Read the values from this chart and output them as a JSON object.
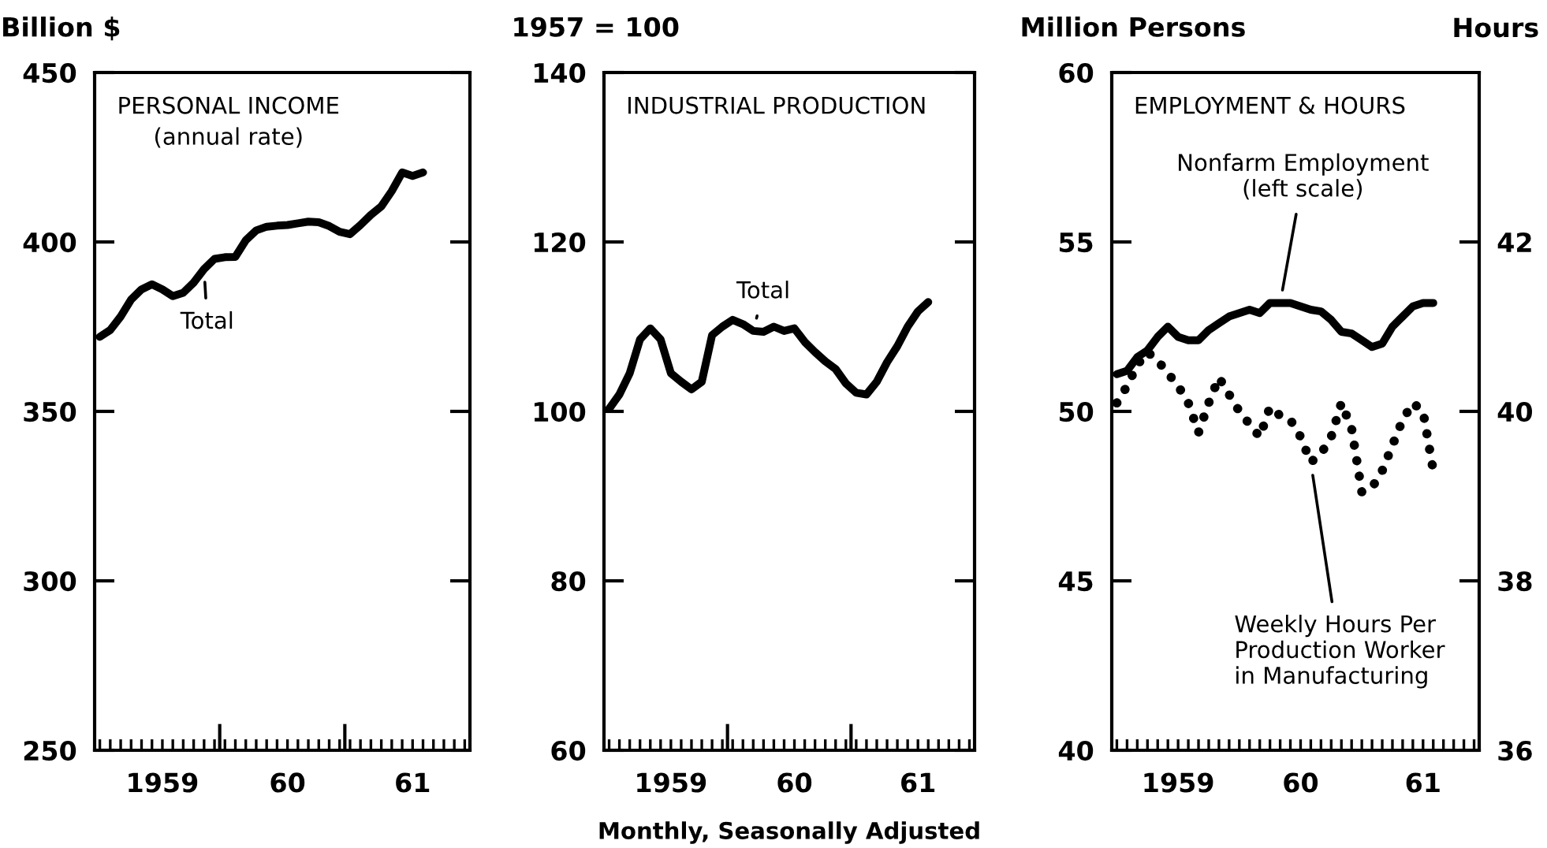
{
  "chart_data": [
    {
      "type": "line",
      "title": "PERSONAL INCOME\n(annual rate)",
      "ylabel": "Billion $",
      "ylim": [
        250,
        450
      ],
      "yticks": [
        250,
        300,
        350,
        400,
        450
      ],
      "categories": [
        null,
        null,
        null,
        null,
        null,
        null,
        "1959",
        null,
        null,
        null,
        null,
        null,
        null,
        null,
        null,
        null,
        null,
        null,
        "60",
        null,
        null,
        null,
        null,
        null,
        null,
        null,
        null,
        null,
        null,
        null,
        "61",
        null,
        null,
        null,
        null,
        null
      ],
      "grid": false,
      "line_style": "solid",
      "series": [
        {
          "name": "Total",
          "color": "#000000",
          "values": [
            372,
            374,
            378,
            383,
            386,
            387.5,
            386,
            384,
            385,
            388,
            392,
            395,
            395.5,
            395.6,
            400.5,
            403.4,
            404.5,
            404.8,
            405,
            405.5,
            406,
            405.8,
            404.7,
            403,
            402.3,
            405,
            408,
            410.5,
            415,
            420.5,
            419.5,
            420.5,
            null,
            null,
            null,
            null
          ]
        }
      ]
    },
    {
      "type": "line",
      "title": "INDUSTRIAL PRODUCTION",
      "ylabel": "1957 = 100",
      "ylim": [
        60,
        140
      ],
      "yticks": [
        60,
        80,
        100,
        120,
        140
      ],
      "categories": [
        null,
        null,
        null,
        null,
        null,
        null,
        "1959",
        null,
        null,
        null,
        null,
        null,
        null,
        null,
        null,
        null,
        null,
        null,
        "60",
        null,
        null,
        null,
        null,
        null,
        null,
        null,
        null,
        null,
        null,
        null,
        "61",
        null,
        null,
        null,
        null,
        null
      ],
      "grid": false,
      "line_style": "solid",
      "annotations": [
        "Monthly, Seasonally Adjusted"
      ],
      "series": [
        {
          "name": "Total",
          "color": "#000000",
          "values": [
            100.3,
            102,
            104.5,
            108.5,
            109.8,
            108.5,
            104.5,
            103.5,
            102.6,
            103.5,
            109,
            110,
            110.8,
            110.3,
            109.5,
            109.4,
            110,
            109.5,
            109.8,
            108.2,
            107,
            105.9,
            105,
            103.3,
            102.2,
            102,
            103.5,
            105.8,
            107.7,
            110,
            111.8,
            112.9,
            null,
            null,
            null,
            null
          ]
        }
      ]
    },
    {
      "type": "line",
      "title": "EMPLOYMENT & HOURS",
      "ylabel": "Million Persons",
      "y2label": "Hours",
      "ylim": [
        40,
        60
      ],
      "yticks": [
        40,
        45,
        50,
        55,
        60
      ],
      "y2lim": [
        36,
        44
      ],
      "y2ticks": [
        36,
        38,
        40,
        42
      ],
      "categories": [
        null,
        null,
        null,
        null,
        null,
        null,
        "1959",
        null,
        null,
        null,
        null,
        null,
        null,
        null,
        null,
        null,
        null,
        null,
        "60",
        null,
        null,
        null,
        null,
        null,
        null,
        null,
        null,
        null,
        null,
        null,
        "61",
        null,
        null,
        null,
        null,
        null
      ],
      "grid": false,
      "series": [
        {
          "name": "Nonfarm Employment\n(left scale)",
          "color": "#000000",
          "line_style": "solid",
          "values": [
            51.1,
            51.2,
            51.6,
            51.8,
            52.2,
            52.5,
            52.2,
            52.1,
            52.1,
            52.4,
            52.6,
            52.8,
            52.9,
            53.0,
            52.9,
            53.2,
            53.2,
            53.2,
            53.1,
            53.0,
            52.95,
            52.7,
            52.35,
            52.3,
            52.1,
            51.9,
            52.0,
            52.5,
            52.8,
            53.1,
            53.2,
            53.2,
            null,
            null,
            null,
            null
          ]
        },
        {
          "name": "Weekly Hours Per\nProduction Worker\nin Manufacturing",
          "color": "#000000",
          "line_style": "dotted",
          "axis": "y2",
          "values": [
            40.1,
            40.3,
            40.55,
            40.7,
            40.6,
            40.45,
            40.3,
            40.1,
            39.75,
            40.1,
            40.4,
            40.2,
            40.0,
            39.85,
            39.7,
            40.05,
            39.95,
            39.9,
            39.7,
            39.4,
            39.5,
            39.7,
            40.1,
            39.8,
            39.05,
            39.1,
            39.3,
            39.6,
            39.9,
            40.1,
            40.0,
            39.3,
            null,
            null,
            null,
            null
          ]
        }
      ]
    }
  ]
}
